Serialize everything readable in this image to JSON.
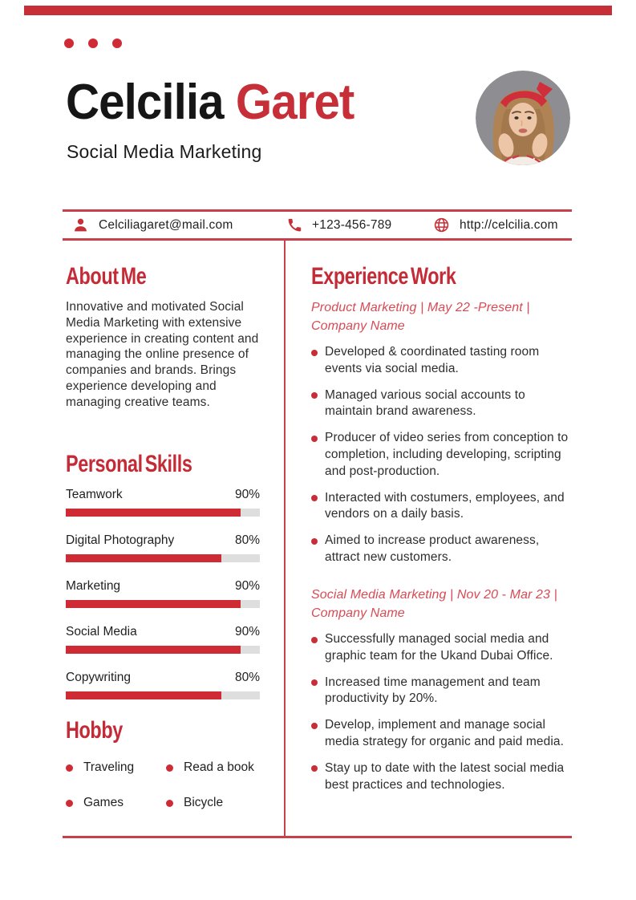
{
  "colors": {
    "accent": "#c62f38",
    "job_title_red": "#d94a54",
    "bar_track": "#dedede",
    "name_black": "#161616",
    "photo_background": "#8e8d92"
  },
  "icons": {
    "email": "person-icon",
    "phone": "phone-icon",
    "website": "globe-icon",
    "list_bullet": "dot-icon"
  },
  "header": {
    "first_name": "Celcilia",
    "last_name": "Garet",
    "subtitle": "Social Media Marketing"
  },
  "contact": {
    "email": "Celciliagaret@mail.com",
    "phone": "+123-456-789",
    "website": "http://celcilia.com"
  },
  "about": {
    "heading": "About Me",
    "body": "Innovative and motivated Social Media Marketing with extensive experience in creating content and managing the online presence of companies and brands. Brings experience developing and managing creative teams."
  },
  "skills": {
    "heading": "Personal Skills",
    "items": [
      {
        "label": "Teamwork",
        "percent": 90,
        "percent_label": "90%"
      },
      {
        "label": "Digital Photography",
        "percent": 80,
        "percent_label": "80%"
      },
      {
        "label": "Marketing",
        "percent": 90,
        "percent_label": "90%"
      },
      {
        "label": "Social Media",
        "percent": 90,
        "percent_label": "90%"
      },
      {
        "label": "Copywriting",
        "percent": 80,
        "percent_label": "80%"
      }
    ]
  },
  "hobby": {
    "heading": "Hobby",
    "items": [
      "Traveling",
      "Read a book",
      "Games",
      "Bicycle"
    ]
  },
  "experience": {
    "heading": "Experience Work",
    "jobs": [
      {
        "title": "Product Marketing | May 22 -Present | Company Name",
        "bullets": [
          "Developed & coordinated tasting room events via social media.",
          "Managed various social accounts to maintain brand awareness.",
          "Producer of video series from conception to completion, including developing, scripting and post-production.",
          "Interacted with costumers, employees, and vendors on a daily basis.",
          "Aimed to increase product awareness, attract new customers."
        ]
      },
      {
        "title": "Social Media Marketing | Nov 20 - Mar 23 | Company Name",
        "bullets": [
          "Successfully managed social media and graphic team for the Ukand Dubai Office.",
          "Increased time management and team productivity by 20%.",
          "Develop, implement and manage social media strategy for organic and paid media.",
          "Stay up to date with the latest social media best practices and technologies."
        ]
      }
    ]
  }
}
